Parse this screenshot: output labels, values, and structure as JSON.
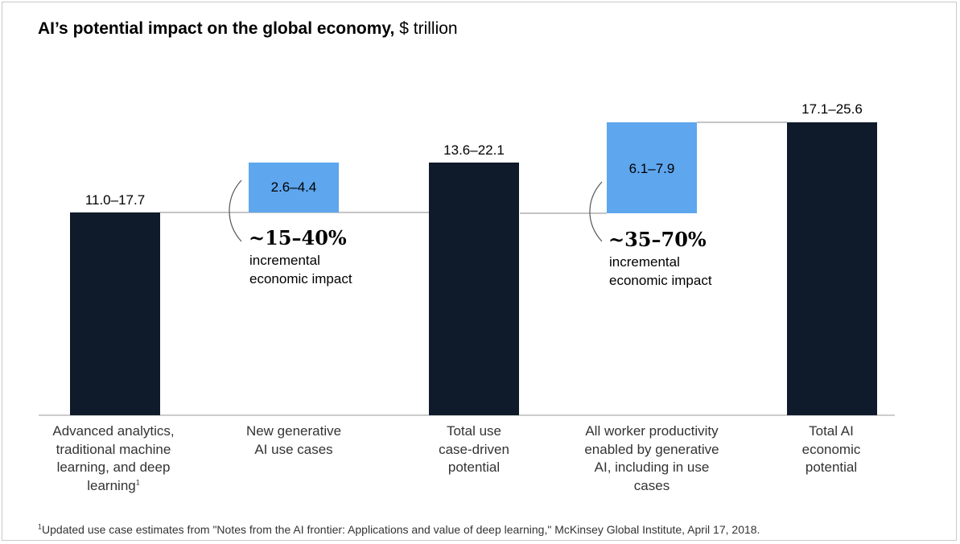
{
  "title": {
    "bold": "AI’s potential impact on the global economy,",
    "unit": "$ trillion"
  },
  "chart_data": {
    "type": "waterfall",
    "title": "AI’s potential impact on the global economy, $ trillion",
    "categories": [
      "Advanced analytics, traditional machine learning, and deep learning",
      "New generative AI use cases",
      "Total use case-driven potential",
      "All worker productivity enabled by generative AI, including in use cases",
      "Total AI economic potential"
    ],
    "bars": [
      {
        "kind": "total",
        "range": [
          11.0,
          17.7
        ],
        "label": "11.0–17.7",
        "color": "#0f1b2a"
      },
      {
        "kind": "increment",
        "range": [
          2.6,
          4.4
        ],
        "label": "2.6–4.4",
        "color": "#5ea6ee"
      },
      {
        "kind": "total",
        "range": [
          13.6,
          22.1
        ],
        "label": "13.6–22.1",
        "color": "#0f1b2a"
      },
      {
        "kind": "increment",
        "range": [
          6.1,
          7.9
        ],
        "label": "6.1–7.9",
        "color": "#5ea6ee"
      },
      {
        "kind": "total",
        "range": [
          17.1,
          25.6
        ],
        "label": "17.1–25.6",
        "color": "#0f1b2a"
      }
    ],
    "annotations": [
      {
        "value": "~15–40%",
        "text": [
          "incremental",
          "economic impact"
        ]
      },
      {
        "value": "~35–70%",
        "text": [
          "incremental",
          "economic impact"
        ]
      }
    ]
  },
  "labels": {
    "cat0": {
      "lines": [
        "Advanced analytics,",
        "traditional machine",
        "learning, and deep",
        "learning"
      ],
      "sup": "1"
    },
    "cat1": {
      "lines": [
        "New generative",
        "AI use cases"
      ]
    },
    "cat2": {
      "lines": [
        "Total use",
        "case-driven",
        "potential"
      ]
    },
    "cat3": {
      "lines": [
        "All worker productivity",
        "enabled by generative",
        "AI, including in use",
        "cases"
      ]
    },
    "cat4": {
      "lines": [
        "Total AI",
        "economic",
        "potential"
      ]
    }
  },
  "footnote": {
    "sup": "1",
    "text": "Updated use case estimates from \"Notes from the AI frontier: Applications and value of deep learning,\" McKinsey Global Institute, April 17, 2018."
  }
}
